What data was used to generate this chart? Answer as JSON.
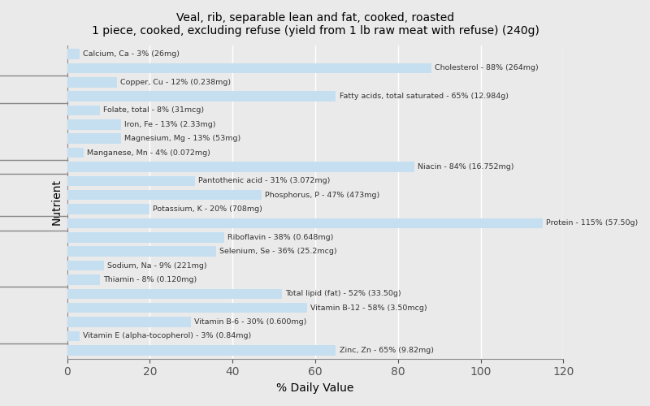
{
  "title": "Veal, rib, separable lean and fat, cooked, roasted\n1 piece, cooked, excluding refuse (yield from 1 lb raw meat with refuse) (240g)",
  "xlabel": "% Daily Value",
  "ylabel": "Nutrient",
  "xlim": [
    0,
    120
  ],
  "xticks": [
    0,
    20,
    40,
    60,
    80,
    100,
    120
  ],
  "bar_color": "#c5dff0",
  "background_color": "#eaeaea",
  "grid_color": "#ffffff",
  "nutrients": [
    {
      "label": "Calcium, Ca - 3% (26mg)",
      "value": 3
    },
    {
      "label": "Cholesterol - 88% (264mg)",
      "value": 88
    },
    {
      "label": "Copper, Cu - 12% (0.238mg)",
      "value": 12
    },
    {
      "label": "Fatty acids, total saturated - 65% (12.984g)",
      "value": 65
    },
    {
      "label": "Folate, total - 8% (31mcg)",
      "value": 8
    },
    {
      "label": "Iron, Fe - 13% (2.33mg)",
      "value": 13
    },
    {
      "label": "Magnesium, Mg - 13% (53mg)",
      "value": 13
    },
    {
      "label": "Manganese, Mn - 4% (0.072mg)",
      "value": 4
    },
    {
      "label": "Niacin - 84% (16.752mg)",
      "value": 84
    },
    {
      "label": "Pantothenic acid - 31% (3.072mg)",
      "value": 31
    },
    {
      "label": "Phosphorus, P - 47% (473mg)",
      "value": 47
    },
    {
      "label": "Potassium, K - 20% (708mg)",
      "value": 20
    },
    {
      "label": "Protein - 115% (57.50g)",
      "value": 115
    },
    {
      "label": "Riboflavin - 38% (0.648mg)",
      "value": 38
    },
    {
      "label": "Selenium, Se - 36% (25.2mcg)",
      "value": 36
    },
    {
      "label": "Sodium, Na - 9% (221mg)",
      "value": 9
    },
    {
      "label": "Thiamin - 8% (0.120mg)",
      "value": 8
    },
    {
      "label": "Total lipid (fat) - 52% (33.50g)",
      "value": 52
    },
    {
      "label": "Vitamin B-12 - 58% (3.50mcg)",
      "value": 58
    },
    {
      "label": "Vitamin B-6 - 30% (0.600mg)",
      "value": 30
    },
    {
      "label": "Vitamin E (alpha-tocopherol) - 3% (0.84mg)",
      "value": 3
    },
    {
      "label": "Zinc, Zn - 65% (9.82mg)",
      "value": 65
    }
  ]
}
